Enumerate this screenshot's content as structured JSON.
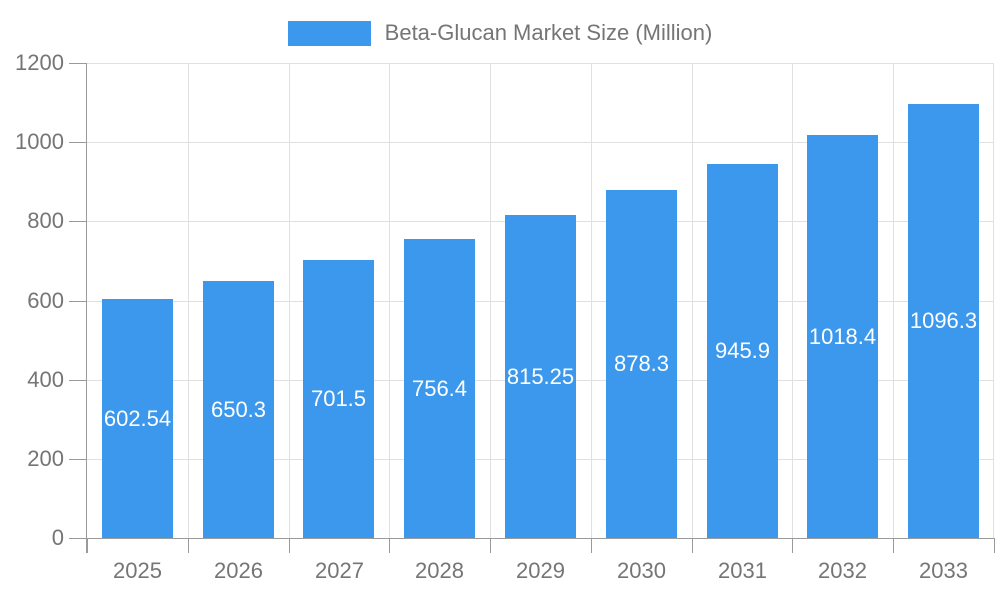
{
  "chart_data": {
    "type": "bar",
    "title": "Beta-Glucan Market Size (Million)",
    "categories": [
      "2025",
      "2026",
      "2027",
      "2028",
      "2029",
      "2030",
      "2031",
      "2032",
      "2033"
    ],
    "series": [
      {
        "name": "Beta-Glucan Market Size (Million)",
        "values": [
          602.54,
          650.3,
          701.5,
          756.4,
          815.25,
          878.3,
          945.9,
          1018.4,
          1096.3
        ]
      }
    ],
    "value_labels": [
      "602.54",
      "650.3",
      "701.5",
      "756.4",
      "815.25",
      "878.3",
      "945.9",
      "1018.4",
      "1096.3"
    ],
    "xlabel": "",
    "ylabel": "",
    "ylim": [
      0,
      1200
    ],
    "yticks": [
      0,
      200,
      400,
      600,
      800,
      1000,
      1200
    ],
    "ytick_labels": [
      "0",
      "200",
      "400",
      "600",
      "800",
      "1000",
      "1200"
    ],
    "grid": true,
    "legend_position": "top",
    "colors": {
      "bar": "#3C98EC",
      "grid": "#e0e0e0",
      "axis": "#9a9a9a",
      "axis_text": "#757575",
      "value_label": "#ffffff",
      "background": "#ffffff"
    }
  }
}
